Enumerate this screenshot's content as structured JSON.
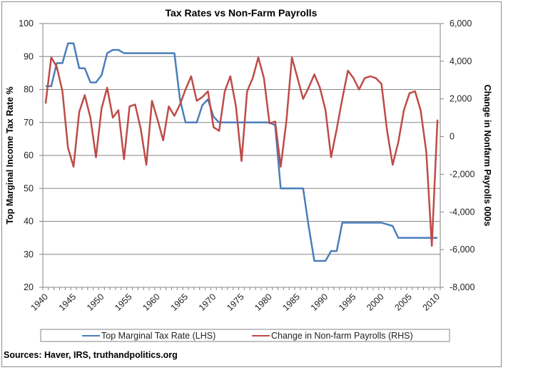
{
  "chart_data": {
    "type": "line",
    "title": "Tax Rates vs Non-Farm Payrolls",
    "xlabel": "",
    "ylabel": "Top Marginal Income Tax Rate %",
    "y2label": "Change in Nonfarm Payrolls 000s",
    "ylim": [
      20,
      100
    ],
    "y2lim": [
      -8000,
      6000
    ],
    "y_ticks": [
      "100",
      "90",
      "80",
      "70",
      "60",
      "50",
      "40",
      "30",
      "20"
    ],
    "y_tick_values": [
      100,
      90,
      80,
      70,
      60,
      50,
      40,
      30,
      20
    ],
    "y2_ticks": [
      "6,000",
      "4,000",
      "2,000",
      "0",
      "-2,000",
      "-4,000",
      "-6,000",
      "-8,000"
    ],
    "y2_tick_values": [
      6000,
      4000,
      2000,
      0,
      -2000,
      -4000,
      -6000,
      -8000
    ],
    "x_tick_labels": [
      "1940",
      "1945",
      "1950",
      "1955",
      "1960",
      "1965",
      "1970",
      "1975",
      "1980",
      "1985",
      "1990",
      "1995",
      "2000",
      "2005",
      "2010"
    ],
    "grid": true,
    "legend_position": "bottom",
    "x": [
      1940,
      1941,
      1942,
      1943,
      1944,
      1945,
      1946,
      1947,
      1948,
      1949,
      1950,
      1951,
      1952,
      1953,
      1954,
      1955,
      1956,
      1957,
      1958,
      1959,
      1960,
      1961,
      1962,
      1963,
      1964,
      1965,
      1966,
      1967,
      1968,
      1969,
      1970,
      1971,
      1972,
      1973,
      1974,
      1975,
      1976,
      1977,
      1978,
      1979,
      1980,
      1981,
      1982,
      1983,
      1984,
      1985,
      1986,
      1987,
      1988,
      1989,
      1990,
      1991,
      1992,
      1993,
      1994,
      1995,
      1996,
      1997,
      1998,
      1999,
      2000,
      2001,
      2002,
      2003,
      2004,
      2005,
      2006,
      2007,
      2008,
      2009,
      2010
    ],
    "series": [
      {
        "name": "Top Marginal Tax Rate (LHS)",
        "axis": "left",
        "color": "#4a7ebb",
        "values": [
          81,
          81,
          88,
          88,
          94,
          94,
          86.45,
          86.45,
          82.13,
          82.13,
          84.36,
          91,
          92,
          92,
          91,
          91,
          91,
          91,
          91,
          91,
          91,
          91,
          91,
          91,
          77,
          70,
          70,
          70,
          75.25,
          77,
          71.75,
          70,
          70,
          70,
          70,
          70,
          70,
          70,
          70,
          70,
          70,
          69.13,
          50,
          50,
          50,
          50,
          50,
          38.5,
          28,
          28,
          28,
          31,
          31,
          39.6,
          39.6,
          39.6,
          39.6,
          39.6,
          39.6,
          39.6,
          39.6,
          39.1,
          38.6,
          35,
          35,
          35,
          35,
          35,
          35,
          35,
          35
        ]
      },
      {
        "name": "Change in Non-farm Payrolls (RHS)",
        "axis": "right",
        "color": "#be4b48",
        "values": [
          1750,
          4200,
          3700,
          2400,
          -600,
          -1600,
          1300,
          2200,
          1000,
          -1100,
          1500,
          2600,
          1000,
          1400,
          -1200,
          1600,
          1700,
          400,
          -1500,
          1900,
          900,
          -200,
          1600,
          1100,
          1700,
          2500,
          3200,
          1900,
          2100,
          2400,
          500,
          300,
          2400,
          3200,
          1600,
          -1300,
          2400,
          3100,
          4200,
          3100,
          700,
          800,
          -1600,
          800,
          4200,
          3100,
          2000,
          2600,
          3300,
          2600,
          1400,
          -1100,
          400,
          2000,
          3500,
          3100,
          2500,
          3100,
          3200,
          3100,
          2800,
          300,
          -1500,
          -300,
          1400,
          2300,
          2400,
          1400,
          -800,
          -5800,
          900
        ]
      }
    ]
  },
  "footer": {
    "sources": "Sources: Haver, IRS, truthandpolitics.org"
  }
}
